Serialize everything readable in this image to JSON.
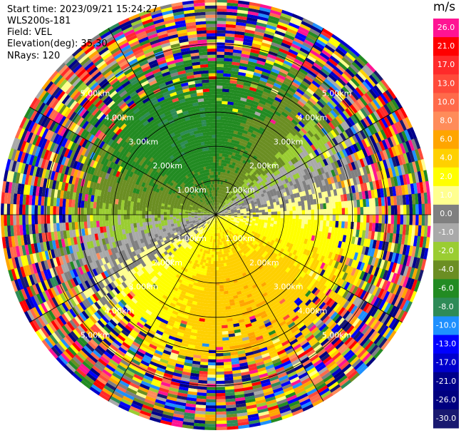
{
  "header": {
    "start_time": "Start time: 2023/09/21 15:24:27",
    "instrument": "WLS200s-181",
    "field": "Field: VEL",
    "elevation": "Elevation(deg): 35.30",
    "nrays": "NRays: 120"
  },
  "chart_data": {
    "type": "heatmap",
    "projection": "polar (PPI)",
    "field": "VEL",
    "units": "m/s",
    "n_rays": 120,
    "elevation_deg": 35.3,
    "range_rings_km": [
      1.0,
      2.0,
      3.0,
      4.0,
      5.0
    ],
    "range_ring_labels": [
      "1.00km",
      "2.00km",
      "3.00km",
      "4.00km",
      "5.00km"
    ],
    "max_range_km": 6.3,
    "grid": true,
    "velocity_pattern": {
      "description_of_field": "dipole Doppler pattern",
      "positive_peak_azimuth_deg": 160,
      "peak_velocity_m_s": 5.5,
      "noise_begins_km": 5.0
    },
    "colorbar": {
      "label": "m/s",
      "placement": "right",
      "levels": [
        {
          "label": "26.0",
          "color": "#ff1493"
        },
        {
          "label": "21.0",
          "color": "#ff0000"
        },
        {
          "label": "17.0",
          "color": "#ff2a2a"
        },
        {
          "label": "13.0",
          "color": "#ff4a3a"
        },
        {
          "label": "10.0",
          "color": "#ff6a4a"
        },
        {
          "label": "8.0",
          "color": "#ff8c5a"
        },
        {
          "label": "6.0",
          "color": "#ffa500"
        },
        {
          "label": "4.0",
          "color": "#ffd000"
        },
        {
          "label": "2.0",
          "color": "#ffff00"
        },
        {
          "label": "1.0",
          "color": "#ffff90"
        },
        {
          "label": "0.0",
          "color": "#808080"
        },
        {
          "label": "-1.0",
          "color": "#a9a9a9"
        },
        {
          "label": "-2.0",
          "color": "#9acd32"
        },
        {
          "label": "-4.0",
          "color": "#6b8e23"
        },
        {
          "label": "-6.0",
          "color": "#228b22"
        },
        {
          "label": "-8.0",
          "color": "#2e8b57"
        },
        {
          "label": "-10.0",
          "color": "#1e90ff"
        },
        {
          "label": "-13.0",
          "color": "#0000ff"
        },
        {
          "label": "-17.0",
          "color": "#0000cd"
        },
        {
          "label": "-21.0",
          "color": "#00008b"
        },
        {
          "label": "-26.0",
          "color": "#000080"
        },
        {
          "label": "-30.0",
          "color": "#191970"
        }
      ]
    }
  }
}
